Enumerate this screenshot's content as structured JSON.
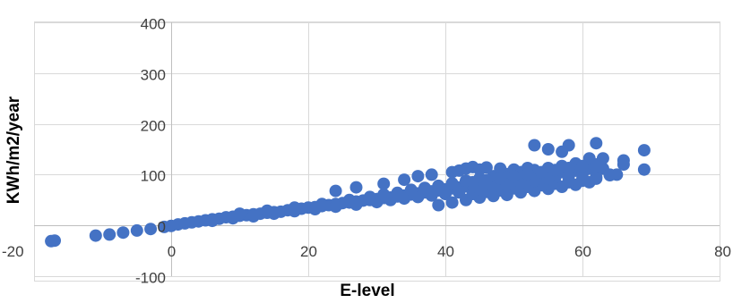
{
  "chart_data": {
    "type": "scatter",
    "title": "",
    "xlabel": "E-level",
    "ylabel": "KWh/m2/year",
    "xlim": [
      -20,
      80
    ],
    "ylim": [
      -100,
      400
    ],
    "x_ticks": [
      -20,
      0,
      20,
      40,
      60,
      80
    ],
    "y_ticks": [
      -100,
      0,
      100,
      200,
      300,
      400
    ],
    "x_tick_labels": [
      "-20",
      "0",
      "20",
      "40",
      "60",
      "80"
    ],
    "y_tick_labels": [
      "-100",
      "0",
      "100",
      "200",
      "300",
      "400"
    ],
    "grid": true,
    "legend": "none",
    "marker_color": "#4472C4",
    "points": [
      [
        -17.5,
        -31
      ],
      [
        -17,
        -30
      ],
      [
        -11,
        -20
      ],
      [
        -9,
        -18
      ],
      [
        -7,
        -14
      ],
      [
        -5,
        -10
      ],
      [
        -3,
        -7
      ],
      [
        -1,
        -3
      ],
      [
        0,
        -1
      ],
      [
        1,
        2
      ],
      [
        2,
        4
      ],
      [
        3,
        6
      ],
      [
        4,
        8
      ],
      [
        5,
        10
      ],
      [
        6,
        12
      ],
      [
        7,
        13
      ],
      [
        8,
        16
      ],
      [
        9,
        17
      ],
      [
        10,
        19
      ],
      [
        11,
        20
      ],
      [
        12,
        22
      ],
      [
        13,
        23
      ],
      [
        14,
        25
      ],
      [
        15,
        26
      ],
      [
        16,
        27
      ],
      [
        17,
        30
      ],
      [
        18,
        32
      ],
      [
        19,
        33
      ],
      [
        20,
        35
      ],
      [
        21,
        36
      ],
      [
        22,
        38
      ],
      [
        23,
        40
      ],
      [
        24,
        42
      ],
      [
        25,
        44
      ],
      [
        26,
        45
      ],
      [
        27,
        47
      ],
      [
        28,
        49
      ],
      [
        29,
        50
      ],
      [
        30,
        52
      ],
      [
        31,
        54
      ],
      [
        32,
        55
      ],
      [
        33,
        57
      ],
      [
        34,
        59
      ],
      [
        35,
        61
      ],
      [
        36,
        63
      ],
      [
        37,
        65
      ],
      [
        38,
        67
      ],
      [
        39,
        69
      ],
      [
        40,
        71
      ],
      [
        41,
        73
      ],
      [
        42,
        75
      ],
      [
        43,
        77
      ],
      [
        44,
        79
      ],
      [
        45,
        81
      ],
      [
        46,
        83
      ],
      [
        47,
        85
      ],
      [
        48,
        87
      ],
      [
        49,
        89
      ],
      [
        50,
        91
      ],
      [
        51,
        93
      ],
      [
        52,
        95
      ],
      [
        53,
        97
      ],
      [
        54,
        99
      ],
      [
        55,
        101
      ],
      [
        56,
        103
      ],
      [
        57,
        105
      ],
      [
        58,
        107
      ],
      [
        59,
        108
      ],
      [
        60,
        110
      ],
      [
        61,
        112
      ],
      [
        62,
        114
      ],
      [
        6,
        9
      ],
      [
        9,
        14
      ],
      [
        12,
        18
      ],
      [
        15,
        23
      ],
      [
        18,
        28
      ],
      [
        21,
        32
      ],
      [
        24,
        37
      ],
      [
        27,
        41
      ],
      [
        30,
        46
      ],
      [
        32,
        50
      ],
      [
        34,
        53
      ],
      [
        36,
        56
      ],
      [
        38,
        59
      ],
      [
        40,
        62
      ],
      [
        42,
        65
      ],
      [
        44,
        68
      ],
      [
        46,
        71
      ],
      [
        48,
        74
      ],
      [
        50,
        77
      ],
      [
        52,
        80
      ],
      [
        54,
        83
      ],
      [
        56,
        86
      ],
      [
        58,
        89
      ],
      [
        60,
        92
      ],
      [
        62,
        95
      ],
      [
        64,
        99
      ],
      [
        10,
        23
      ],
      [
        14,
        29
      ],
      [
        18,
        35
      ],
      [
        22,
        42
      ],
      [
        26,
        50
      ],
      [
        29,
        56
      ],
      [
        31,
        61
      ],
      [
        33,
        64
      ],
      [
        35,
        70
      ],
      [
        37,
        74
      ],
      [
        39,
        78
      ],
      [
        41,
        83
      ],
      [
        43,
        88
      ],
      [
        45,
        93
      ],
      [
        47,
        97
      ],
      [
        49,
        101
      ],
      [
        51,
        105
      ],
      [
        53,
        109
      ],
      [
        55,
        113
      ],
      [
        57,
        117
      ],
      [
        59,
        121
      ],
      [
        61,
        124
      ],
      [
        24,
        68
      ],
      [
        27,
        75
      ],
      [
        31,
        82
      ],
      [
        34,
        90
      ],
      [
        36,
        97
      ],
      [
        38,
        100
      ],
      [
        41,
        105
      ],
      [
        42,
        108
      ],
      [
        43,
        112
      ],
      [
        44,
        115
      ],
      [
        45,
        110
      ],
      [
        46,
        114
      ],
      [
        48,
        112
      ],
      [
        50,
        110
      ],
      [
        52,
        113
      ],
      [
        53,
        158
      ],
      [
        55,
        150
      ],
      [
        57,
        145
      ],
      [
        58,
        158
      ],
      [
        59,
        122
      ],
      [
        61,
        132
      ],
      [
        62,
        162
      ],
      [
        63,
        112
      ],
      [
        63,
        132
      ],
      [
        64,
        100
      ],
      [
        65,
        100
      ],
      [
        66,
        128
      ],
      [
        66,
        120
      ],
      [
        69,
        148
      ],
      [
        69,
        110
      ],
      [
        39,
        40
      ],
      [
        41,
        45
      ],
      [
        43,
        50
      ],
      [
        45,
        55
      ],
      [
        47,
        58
      ],
      [
        49,
        60
      ],
      [
        51,
        65
      ],
      [
        53,
        68
      ],
      [
        55,
        72
      ],
      [
        57,
        76
      ],
      [
        59,
        80
      ],
      [
        61,
        85
      ],
      [
        44,
        62
      ],
      [
        46,
        66
      ],
      [
        48,
        69
      ],
      [
        50,
        73
      ],
      [
        52,
        76
      ],
      [
        54,
        79
      ],
      [
        56,
        82
      ],
      [
        58,
        85
      ],
      [
        60,
        88
      ],
      [
        62,
        92
      ],
      [
        47,
        90
      ],
      [
        49,
        94
      ],
      [
        51,
        97
      ],
      [
        53,
        100
      ],
      [
        55,
        104
      ],
      [
        57,
        108
      ],
      [
        59,
        112
      ],
      [
        56,
        95
      ],
      [
        58,
        98
      ],
      [
        60,
        101
      ],
      [
        45,
        72
      ],
      [
        47,
        76
      ],
      [
        49,
        80
      ],
      [
        51,
        84
      ],
      [
        53,
        88
      ],
      [
        55,
        92
      ],
      [
        44,
        85
      ],
      [
        46,
        89
      ],
      [
        48,
        93
      ],
      [
        50,
        97
      ],
      [
        52,
        101
      ],
      [
        54,
        105
      ],
      [
        56,
        109
      ],
      [
        58,
        113
      ],
      [
        60,
        117
      ],
      [
        62,
        120
      ]
    ]
  }
}
